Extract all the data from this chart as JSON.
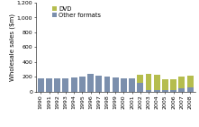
{
  "years": [
    1990,
    1991,
    1992,
    1993,
    1994,
    1995,
    1996,
    1997,
    1998,
    1999,
    2000,
    2001,
    2002,
    2003,
    2004,
    2005,
    2006,
    2007,
    2008
  ],
  "dvd": [
    0,
    0,
    0,
    0,
    0,
    0,
    0,
    0,
    0,
    0,
    0,
    0,
    110,
    225,
    215,
    155,
    145,
    160,
    155
  ],
  "other": [
    175,
    180,
    175,
    178,
    185,
    200,
    235,
    208,
    198,
    188,
    178,
    175,
    120,
    15,
    15,
    15,
    15,
    45,
    55
  ],
  "dvd_color": "#b5bd4e",
  "other_color": "#7b8fad",
  "ylabel": "Wholesale sales ($m)",
  "ylim": [
    0,
    1200
  ],
  "yticks": [
    0,
    200,
    400,
    600,
    800,
    1000,
    1200
  ],
  "ytick_labels": [
    "0",
    "200",
    "400",
    "600",
    "800",
    "1,000",
    "1,200"
  ],
  "legend_dvd": "DVD",
  "legend_other": "Other formats",
  "bg_color": "#ffffff",
  "bar_width": 0.75,
  "tick_fontsize": 4.5,
  "ylabel_fontsize": 5.0,
  "legend_fontsize": 4.8
}
